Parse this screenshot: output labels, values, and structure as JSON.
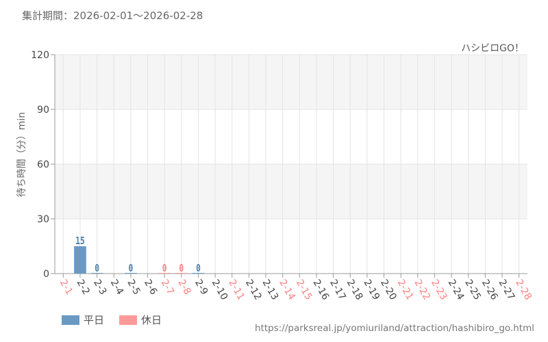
{
  "header": {
    "period": "集計期間：2026-02-01～2026-02-28"
  },
  "source_url": "https://parksreal.jp/yomiuriland/attraction/hashibiro_go.html",
  "colors": {
    "weekday": "#6a9ac4",
    "holiday": "#ff9a9a",
    "weekday_label": "#4a7fae",
    "holiday_label": "#ff8080",
    "band": "#f5f5f5",
    "grid": "#e4e4e4"
  },
  "chart_data": {
    "type": "bar",
    "title": "ハシビロGO！",
    "ylabel": "待ち時間（分）min",
    "xlabel": "",
    "ylim": [
      0,
      120
    ],
    "yticks": [
      0,
      30,
      60,
      90,
      120
    ],
    "grid": true,
    "legend_position": "bottom-left",
    "categories": [
      "2-1",
      "2-2",
      "2-3",
      "2-4",
      "2-5",
      "2-6",
      "2-7",
      "2-8",
      "2-9",
      "2-10",
      "2-11",
      "2-12",
      "2-13",
      "2-14",
      "2-15",
      "2-16",
      "2-17",
      "2-18",
      "2-19",
      "2-20",
      "2-21",
      "2-22",
      "2-23",
      "2-24",
      "2-25",
      "2-26",
      "2-27",
      "2-28"
    ],
    "holiday": [
      true,
      false,
      false,
      false,
      false,
      false,
      true,
      true,
      false,
      false,
      true,
      false,
      false,
      true,
      true,
      false,
      false,
      false,
      false,
      false,
      true,
      true,
      true,
      false,
      false,
      false,
      false,
      true
    ],
    "series": [
      {
        "name": "平日",
        "values": [
          null,
          15,
          0,
          null,
          0,
          null,
          null,
          null,
          0,
          null,
          null,
          null,
          null,
          null,
          null,
          null,
          null,
          null,
          null,
          null,
          null,
          null,
          null,
          null,
          null,
          null,
          null,
          null
        ]
      },
      {
        "name": "休日",
        "values": [
          null,
          null,
          null,
          null,
          null,
          null,
          0,
          0,
          null,
          null,
          null,
          null,
          null,
          null,
          null,
          null,
          null,
          null,
          null,
          null,
          null,
          null,
          null,
          null,
          null,
          null,
          null,
          null
        ]
      }
    ],
    "data_labels": [
      "",
      "15",
      "0",
      "",
      "0",
      "",
      "0",
      "0",
      "0",
      "",
      "",
      "",
      "",
      "",
      "",
      "",
      "",
      "",
      "",
      "",
      "",
      "",
      "",
      "",
      "",
      "",
      "",
      ""
    ]
  }
}
